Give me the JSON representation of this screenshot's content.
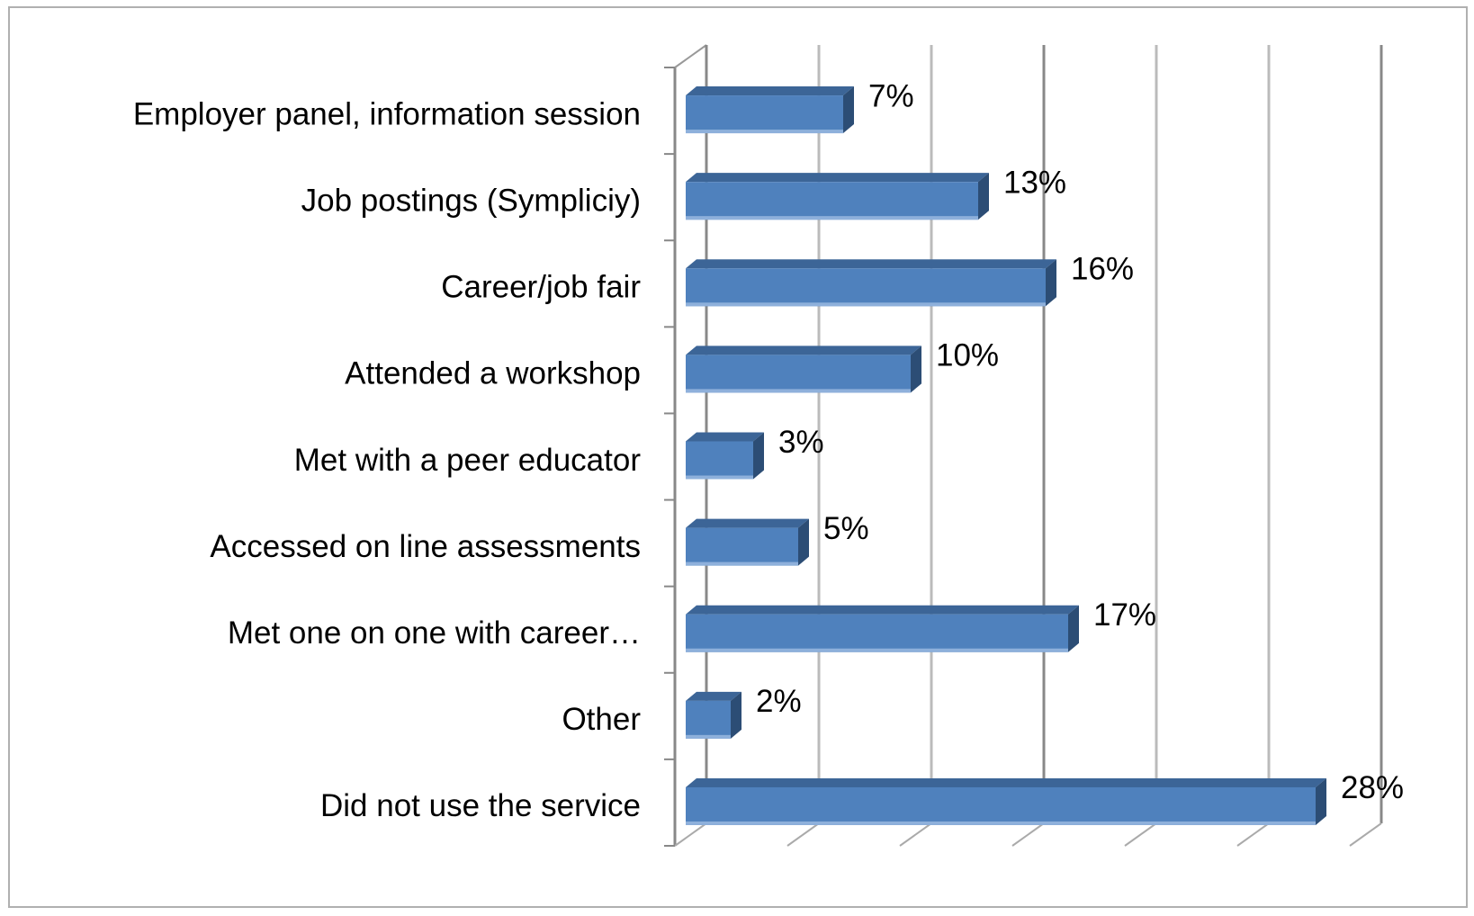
{
  "chart_data": {
    "type": "bar3d_horizontal",
    "categories": [
      "Employer panel, information session",
      "Job postings (Sympliciy)",
      "Career/job fair",
      "Attended a workshop",
      "Met with a peer educator",
      "Accessed on line assessments",
      "Met one on one with career…",
      "Other",
      "Did not use the service"
    ],
    "values": [
      7,
      13,
      16,
      10,
      3,
      5,
      17,
      2,
      28
    ],
    "value_labels": [
      "7%",
      "13%",
      "16%",
      "10%",
      "3%",
      "5%",
      "17%",
      "2%",
      "28%"
    ],
    "color": "#4f81bd",
    "xlim": [
      0,
      30
    ],
    "xticks": [
      0,
      5,
      10,
      15,
      20,
      25,
      30
    ],
    "grid": true
  }
}
